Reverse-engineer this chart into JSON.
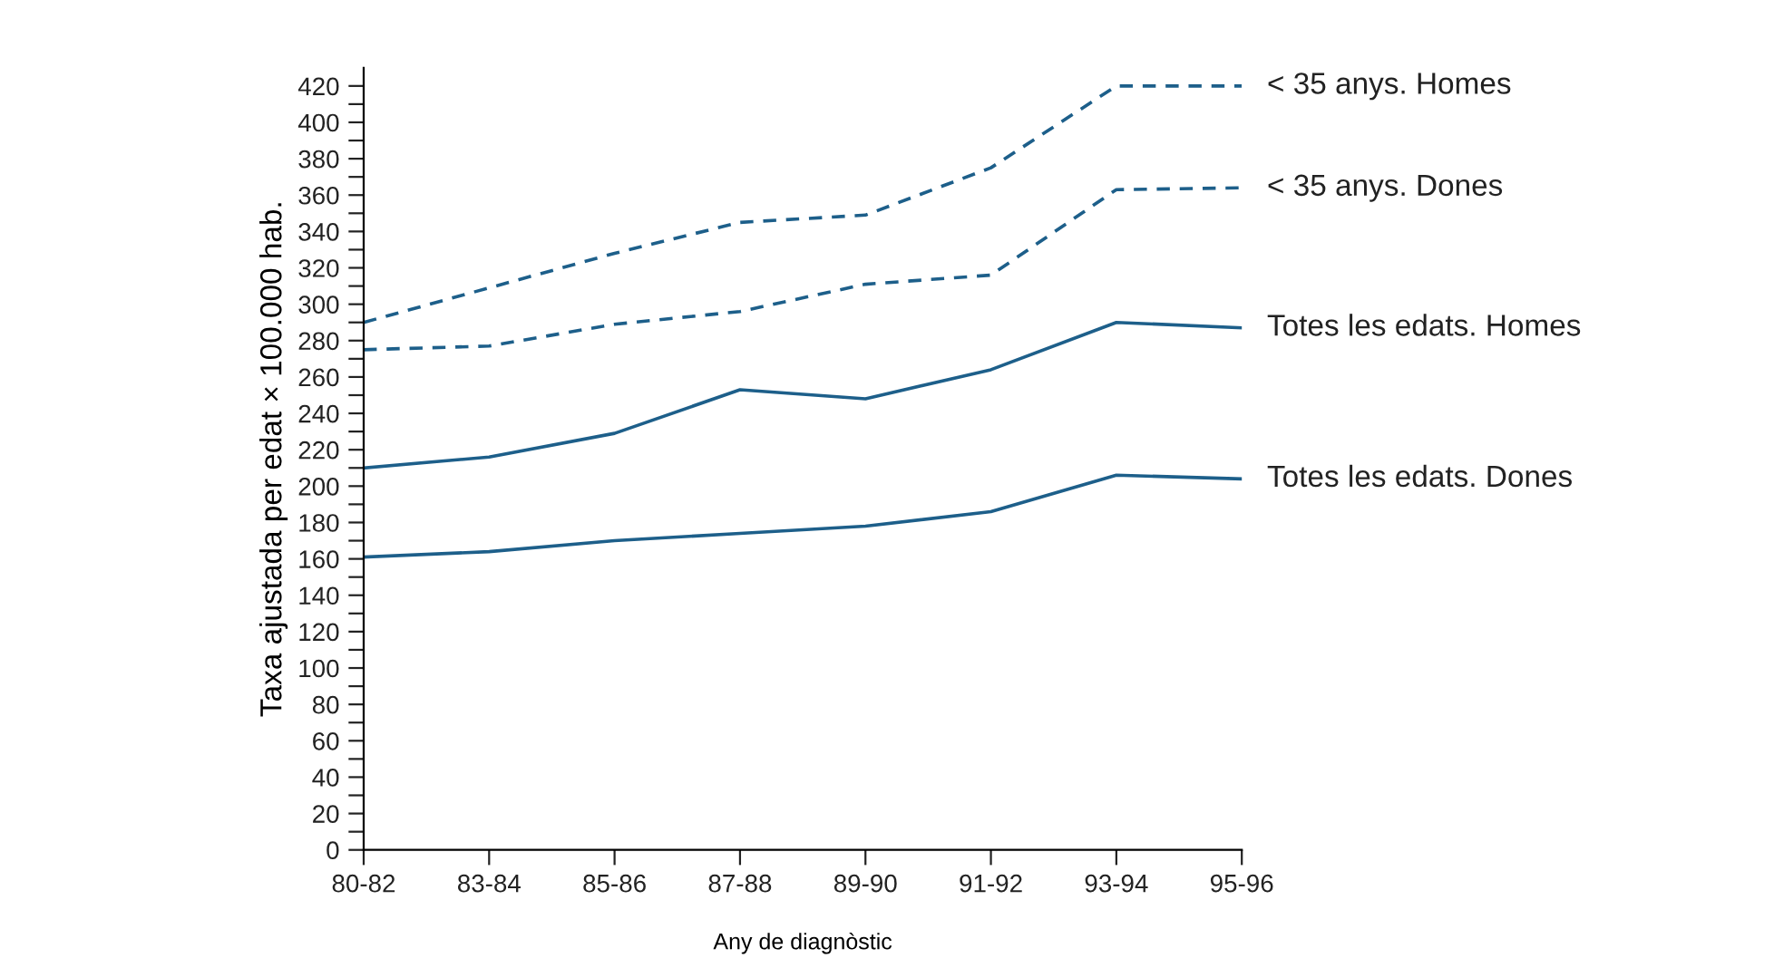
{
  "chart_data": {
    "type": "line",
    "xlabel": "Any de diagnòstic",
    "ylabel": "Taxa ajustada per edat × 100.000 hab.",
    "categories": [
      "80-82",
      "83-84",
      "85-86",
      "87-88",
      "89-90",
      "91-92",
      "93-94",
      "95-96"
    ],
    "ylim": [
      0,
      430
    ],
    "yticks": [
      0,
      {
        "value": 10,
        "label": null
      },
      20,
      {
        "value": 30,
        "label": null
      },
      40,
      {
        "value": 50,
        "label": null
      },
      60,
      {
        "value": 70,
        "label": null
      },
      80,
      {
        "value": 90,
        "label": null
      },
      100,
      {
        "value": 110,
        "label": null
      },
      120,
      {
        "value": 130,
        "label": null
      },
      140,
      {
        "value": 150,
        "label": null
      },
      160,
      {
        "value": 170,
        "label": null
      },
      180,
      {
        "value": 190,
        "label": null
      },
      200,
      {
        "value": 210,
        "label": null
      },
      220,
      {
        "value": 230,
        "label": null
      },
      240,
      {
        "value": 250,
        "label": null
      },
      260,
      {
        "value": 270,
        "label": null
      },
      280,
      {
        "value": 290,
        "label": null
      },
      300,
      {
        "value": 310,
        "label": null
      },
      320,
      {
        "value": 330,
        "label": null
      },
      340,
      {
        "value": 350,
        "label": null
      },
      360,
      {
        "value": 370,
        "label": null
      },
      380,
      {
        "value": 390,
        "label": null
      },
      400,
      {
        "value": 410,
        "label": null
      },
      420
    ],
    "grid": false,
    "legend": false,
    "marker": "none",
    "series": [
      {
        "name": "< 35 anys. Homes",
        "color": "#1d5f8a",
        "line_style": "dashed",
        "values": [
          290,
          309,
          328,
          345,
          349,
          375,
          420,
          420
        ]
      },
      {
        "name": "< 35 anys. Dones",
        "color": "#1d5f8a",
        "line_style": "dashed",
        "values": [
          275,
          277,
          289,
          296,
          311,
          316,
          363,
          364
        ]
      },
      {
        "name": "Totes les edats. Homes",
        "color": "#1d5f8a",
        "line_style": "solid",
        "values": [
          210,
          216,
          229,
          253,
          248,
          264,
          290,
          287
        ]
      },
      {
        "name": "Totes les edats. Dones",
        "color": "#1d5f8a",
        "line_style": "solid",
        "values": [
          161,
          164,
          170,
          174,
          178,
          186,
          206,
          204
        ]
      }
    ]
  }
}
